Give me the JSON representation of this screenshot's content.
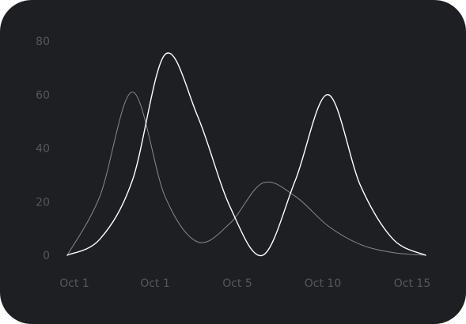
{
  "chart_data": {
    "type": "line",
    "title": "",
    "xlabel": "",
    "ylabel": "",
    "x_ticks": [
      "Oct 1",
      "Oct 1",
      "Oct 5",
      "Oct 10",
      "Oct 15"
    ],
    "y_ticks": [
      "0",
      "20",
      "40",
      "60",
      "80"
    ],
    "ylim": [
      0,
      80
    ],
    "grid": false,
    "legend": "none",
    "series": [
      {
        "color": "#ffffff",
        "style": "smooth",
        "values": [
          0,
          6,
          28,
          75,
          52,
          18,
          0,
          28,
          60,
          26,
          6,
          0
        ]
      },
      {
        "color": "#8a8b8f",
        "style": "smooth",
        "values": [
          0,
          22,
          61,
          22,
          5,
          12,
          27,
          22,
          11,
          4,
          1,
          0
        ]
      }
    ]
  }
}
